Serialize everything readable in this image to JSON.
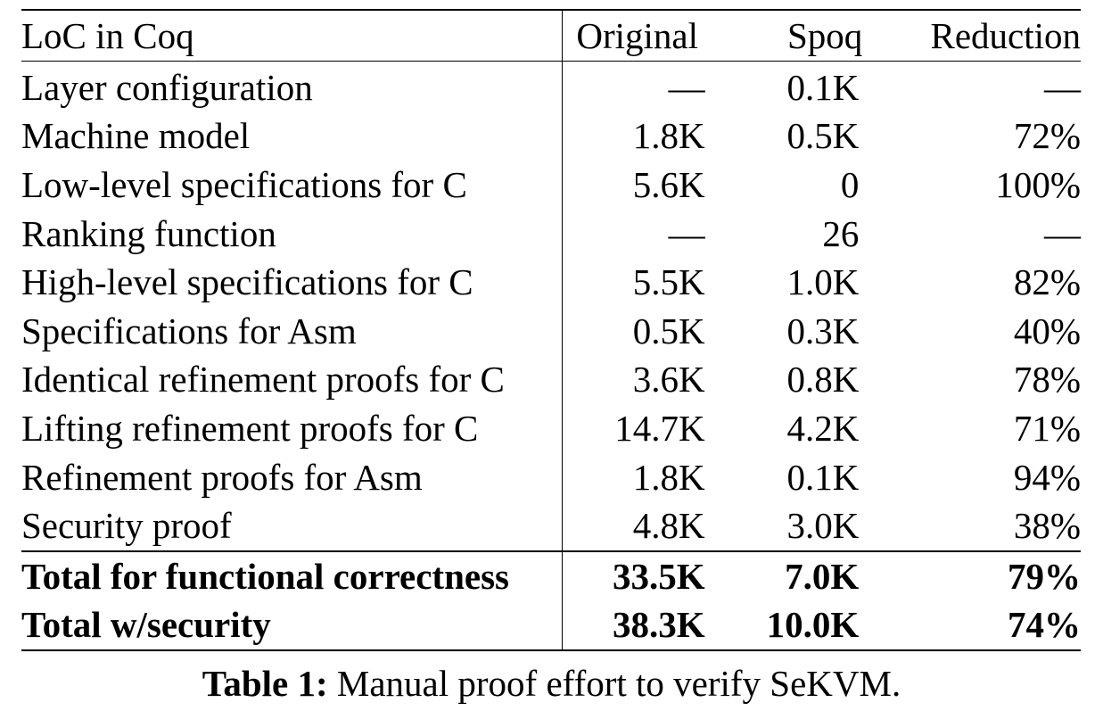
{
  "table": {
    "headers": {
      "label": "LoC in Coq",
      "original": "Original",
      "spoq": "Spoq",
      "reduction": "Reduction"
    },
    "rows": [
      {
        "label": "Layer configuration",
        "original": "—",
        "spoq": "0.1K",
        "reduction": "—"
      },
      {
        "label": "Machine model",
        "original": "1.8K",
        "spoq": "0.5K",
        "reduction": "72%"
      },
      {
        "label": "Low-level specifications for C",
        "original": "5.6K",
        "spoq": "0",
        "reduction": "100%"
      },
      {
        "label": "Ranking function",
        "original": "—",
        "spoq": "26",
        "reduction": "—"
      },
      {
        "label": "High-level specifications for C",
        "original": "5.5K",
        "spoq": "1.0K",
        "reduction": "82%"
      },
      {
        "label": "Specifications for Asm",
        "original": "0.5K",
        "spoq": "0.3K",
        "reduction": "40%"
      },
      {
        "label": "Identical refinement proofs for C",
        "original": "3.6K",
        "spoq": "0.8K",
        "reduction": "78%"
      },
      {
        "label": "Lifting refinement proofs for C",
        "original": "14.7K",
        "spoq": "4.2K",
        "reduction": "71%"
      },
      {
        "label": "Refinement proofs for Asm",
        "original": "1.8K",
        "spoq": "0.1K",
        "reduction": "94%"
      },
      {
        "label": "Security proof",
        "original": "4.8K",
        "spoq": "3.0K",
        "reduction": "38%"
      }
    ],
    "totals": [
      {
        "label": "Total for functional correctness",
        "original": "33.5K",
        "spoq": "7.0K",
        "reduction": "79%"
      },
      {
        "label": "Total w/security",
        "original": "38.3K",
        "spoq": "10.0K",
        "reduction": "74%"
      }
    ]
  },
  "caption": {
    "label": "Table 1:",
    "text": " Manual proof effort to verify SeKVM."
  }
}
